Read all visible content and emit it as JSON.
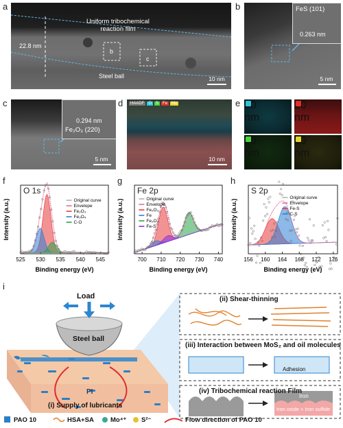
{
  "panels": {
    "a": {
      "letter": "a",
      "title_line1": "Uniform tribochemical",
      "title_line2": "reaction film",
      "thickness": "22.8 nm",
      "steel_ball": "Steel ball",
      "box_b": "b",
      "box_c": "c",
      "scale": "10 nm"
    },
    "b": {
      "letter": "b",
      "phase": "FeS (101)",
      "dspacing": "0.263 nm",
      "scale": "5 nm"
    },
    "c": {
      "letter": "c",
      "dspacing": "0.294 nm",
      "phase": "Fe₂O₃ (220)",
      "scale": "5 nm"
    },
    "d": {
      "letter": "d",
      "tags": [
        "HAADF",
        "O",
        "S",
        "Fe",
        "Mo"
      ],
      "scale": "10 nm"
    },
    "e": {
      "letter": "e",
      "maps": [
        {
          "label": "O",
          "color": "#2ec4d6",
          "scale": "20 nm"
        },
        {
          "label": "Fe",
          "color": "#e0302a",
          "scale": "20 nm"
        },
        {
          "label": "S",
          "color": "#48d43a",
          "scale": "20 nm"
        },
        {
          "label": "Mo",
          "color": "#e8d12e",
          "scale": "20 nm"
        }
      ]
    }
  },
  "chart_data": [
    {
      "type": "line",
      "panel": "f",
      "title": "O 1s",
      "xlabel": "Binding energy (eV)",
      "ylabel": "Intensity (a.u.)",
      "xlim": [
        525,
        547
      ],
      "xticks": [
        525,
        530,
        535,
        540,
        545
      ],
      "legend": [
        "Original curve",
        "Envelope",
        "Fe₂O₃",
        "Fe₃O₄",
        "C-O"
      ],
      "peaks": [
        {
          "name": "Fe₂O₃",
          "center": 531.6,
          "height": 1.0,
          "color": "#e83a3a"
        },
        {
          "name": "Fe₃O₄",
          "center": 529.9,
          "height": 0.42,
          "color": "#2f7fd6"
        },
        {
          "name": "C-O",
          "center": 533.0,
          "height": 0.18,
          "color": "#2ca24a"
        }
      ]
    },
    {
      "type": "line",
      "panel": "g",
      "title": "Fe 2p",
      "xlabel": "Binding energy (eV)",
      "ylabel": "Intensity (a.u.)",
      "xlim": [
        696,
        742
      ],
      "xticks": [
        700,
        710,
        720,
        730,
        740
      ],
      "legend": [
        "Original curve",
        "Envelope",
        "Fe₂O₃",
        "Fe",
        "Fe₃O₄",
        "Fe-S"
      ],
      "peaks": [
        {
          "name": "Fe₂O₃",
          "center": 711.0,
          "height": 0.62,
          "color": "#e83a3a"
        },
        {
          "name": "Fe₃O₄",
          "center": 724.5,
          "height": 0.38,
          "color": "#2ca24a"
        },
        {
          "name": "Fe",
          "center": 707.0,
          "height": 0.08,
          "color": "#2f7fd6"
        },
        {
          "name": "Fe-S",
          "center": 713.5,
          "height": 0.1,
          "color": "#8a2be2"
        }
      ]
    },
    {
      "type": "scatter",
      "panel": "h",
      "title": "S 2p",
      "xlabel": "Binding energy (eV)",
      "ylabel": "Intensity (a.u.)",
      "xlim": [
        156,
        177
      ],
      "xticks": [
        156,
        160,
        164,
        168,
        172,
        176
      ],
      "legend": [
        "Original curve",
        "Envelope",
        "Fe-S",
        "C-S"
      ],
      "peaks": [
        {
          "name": "Fe-S",
          "center": 161.6,
          "height": 0.55,
          "color": "#e83a3a"
        },
        {
          "name": "C-S",
          "center": 164.6,
          "height": 0.8,
          "color": "#2f7fd6"
        }
      ]
    }
  ],
  "schematic": {
    "letter": "i",
    "load": "Load",
    "steel_ball": "Steel ball",
    "pi": "PI",
    "supply": "(i) Supply of lubricants",
    "box2_title": "(ii)  Shear-thinning",
    "box3_title": "(iii)  Interaction between MoS₂ and oil molecules",
    "box3_label": "Adhesion",
    "box4_title": "(iv)  Tribochemical reaction Film",
    "box4_iron": "Iron",
    "box4_film": "Iron oxide + Iron sulfide",
    "legend": [
      "PAO 10",
      "HSA+SA",
      "Mo⁴⁺",
      "S²⁻",
      "Flow direction of PAO 10"
    ]
  }
}
